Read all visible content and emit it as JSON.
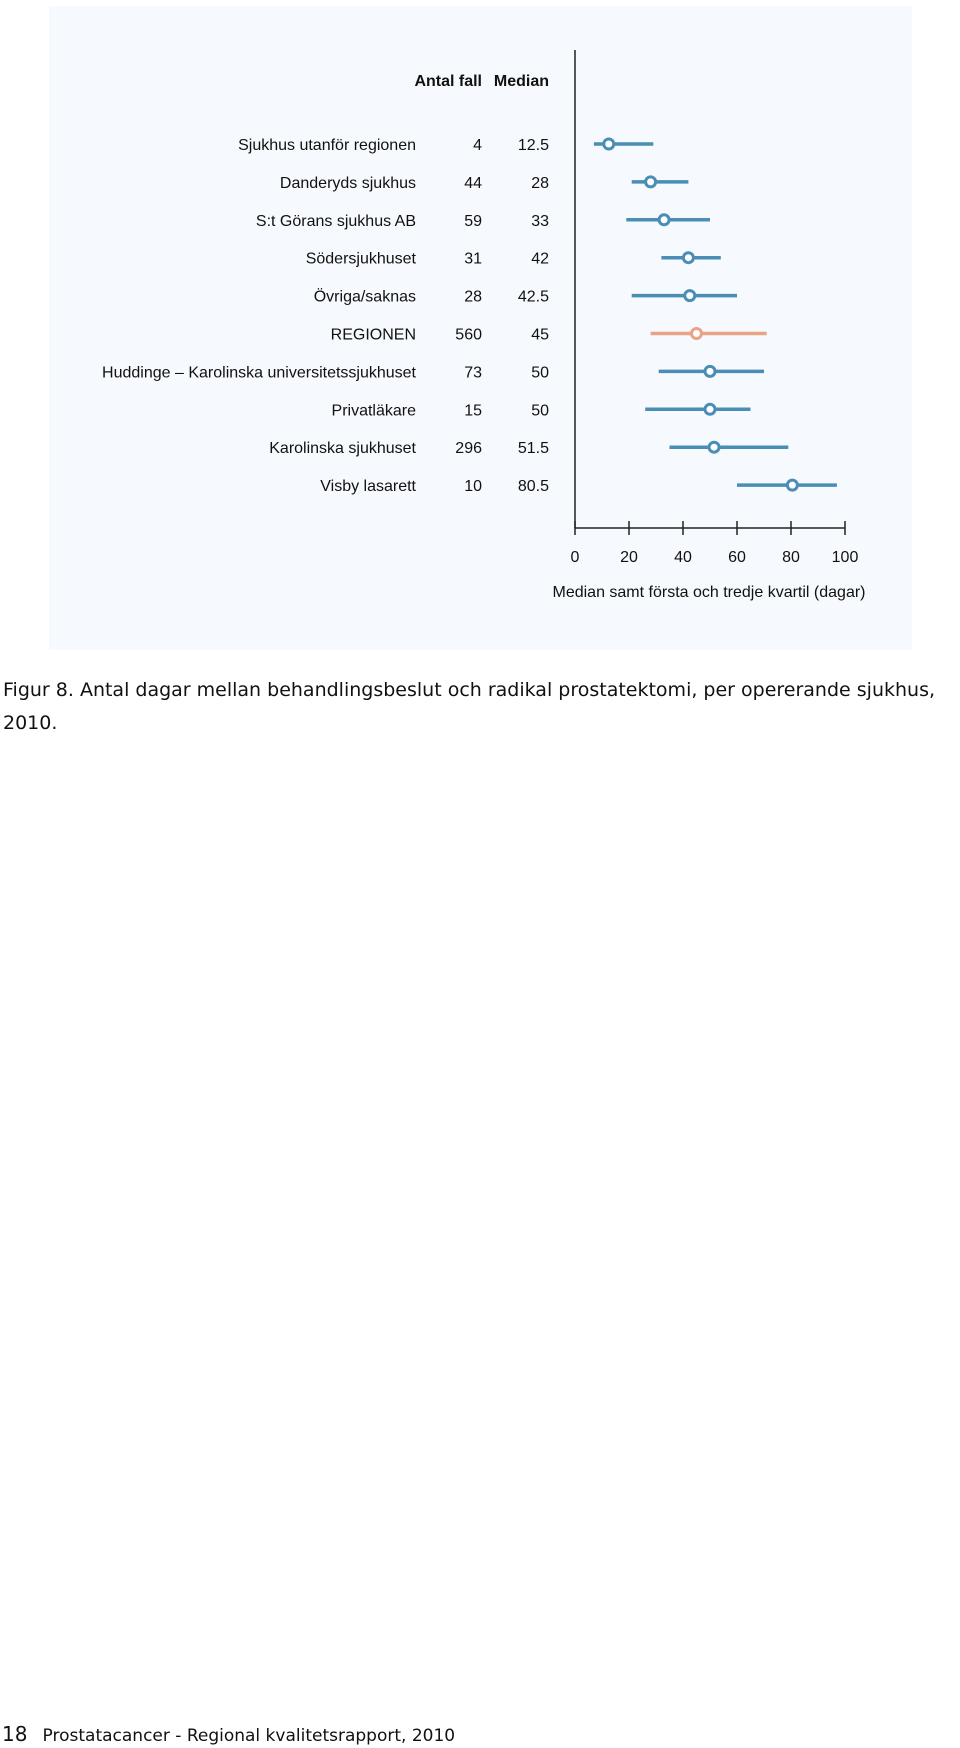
{
  "chart_data": {
    "type": "forest",
    "column_headers": {
      "count": "Antal fall",
      "median": "Median"
    },
    "rows": [
      {
        "label": "Sjukhus utanför regionen",
        "count": "4",
        "median_text": "12.5",
        "median": 12.5,
        "q1": 7,
        "q3": 29,
        "highlight": false
      },
      {
        "label": "Danderyds sjukhus",
        "count": "44",
        "median_text": "28",
        "median": 28,
        "q1": 21,
        "q3": 42,
        "highlight": false
      },
      {
        "label": "S:t Görans sjukhus AB",
        "count": "59",
        "median_text": "33",
        "median": 33,
        "q1": 19,
        "q3": 50,
        "highlight": false
      },
      {
        "label": "Södersjukhuset",
        "count": "31",
        "median_text": "42",
        "median": 42,
        "q1": 32,
        "q3": 54,
        "highlight": false
      },
      {
        "label": "Övriga/saknas",
        "count": "28",
        "median_text": "42.5",
        "median": 42.5,
        "q1": 21,
        "q3": 60,
        "highlight": false
      },
      {
        "label": "REGIONEN",
        "count": "560",
        "median_text": "45",
        "median": 45,
        "q1": 28,
        "q3": 71,
        "highlight": true
      },
      {
        "label": "Huddinge – Karolinska universitetssjukhuset",
        "count": "73",
        "median_text": "50",
        "median": 50,
        "q1": 31,
        "q3": 70,
        "highlight": false
      },
      {
        "label": "Privatläkare",
        "count": "15",
        "median_text": "50",
        "median": 50,
        "q1": 26,
        "q3": 65,
        "highlight": false
      },
      {
        "label": "Karolinska sjukhuset",
        "count": "296",
        "median_text": "51.5",
        "median": 51.5,
        "q1": 35,
        "q3": 79,
        "highlight": false
      },
      {
        "label": "Visby lasarett",
        "count": "10",
        "median_text": "80.5",
        "median": 80.5,
        "q1": 60,
        "q3": 97,
        "highlight": false
      }
    ],
    "x_ticks": [
      "0",
      "20",
      "40",
      "60",
      "80",
      "100"
    ],
    "xlim": [
      0,
      100
    ],
    "xlabel": "Median samt första och tredje kvartil (dagar)",
    "colors": {
      "series": "#4a8db5",
      "highlight": "#e8a485",
      "panel_bg": "#f6f9fd"
    }
  },
  "caption": "Figur 8. Antal dagar mellan behandlingsbeslut och radikal prostatektomi, per opererande sjukhus, 2010.",
  "footer": {
    "page_number": "18",
    "text": "Prostatacancer - Regional kvalitetsrapport, 2010"
  }
}
